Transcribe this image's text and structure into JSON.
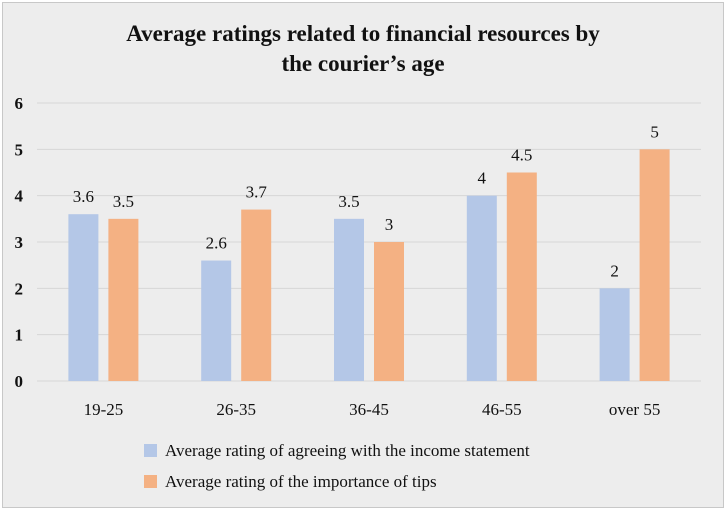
{
  "chart_data": {
    "type": "bar",
    "title_lines": [
      "Average ratings related to financial resources by",
      "the courier’s age"
    ],
    "categories": [
      "19-25",
      "26-35",
      "36-45",
      "46-55",
      "over 55"
    ],
    "series": [
      {
        "name": "Average rating of agreeing with the income statement",
        "values": [
          3.6,
          2.6,
          3.5,
          4,
          2
        ],
        "color": "#b4c7e7"
      },
      {
        "name": "Average rating of the importance of tips",
        "values": [
          3.5,
          3.7,
          3,
          4.5,
          5
        ],
        "color": "#f4b183"
      }
    ],
    "ylim": [
      0,
      6
    ],
    "yticks": [
      0,
      1,
      2,
      3,
      4,
      5,
      6
    ],
    "grid": true,
    "legend_position": "bottom",
    "xlabel": "",
    "ylabel": ""
  }
}
